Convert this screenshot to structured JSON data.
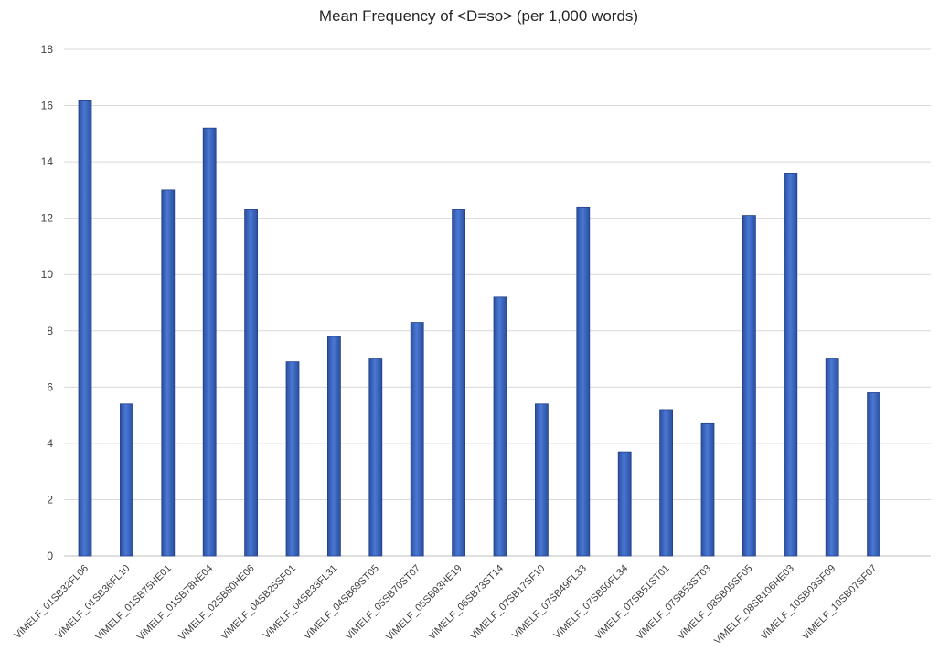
{
  "chart_data": {
    "type": "bar",
    "title": "Mean Frequency of <D=so> (per 1,000 words)",
    "xlabel": "",
    "ylabel": "",
    "ylim": [
      0,
      18
    ],
    "yticks": [
      0,
      2,
      4,
      6,
      8,
      10,
      12,
      14,
      16,
      18
    ],
    "grid": true,
    "legend": "none",
    "bar_color": "#3a63c2",
    "categories": [
      "ViMELF_01SB32FL06",
      "ViMELF_01SB36FL10",
      "ViMELF_01SB75HE01",
      "ViMELF_01SB78HE04",
      "ViMELF_02SB80HE06",
      "ViMELF_04SB25SF01",
      "ViMELF_04SB33FL31",
      "ViMELF_04SB69ST05",
      "ViMELF_05SB70ST07",
      "ViMELF_05SB93HE19",
      "ViMELF_06SB73ST14",
      "ViMELF_07SB17SF10",
      "ViMELF_07SB49FL33",
      "ViMELF_07SB50FL34",
      "ViMELF_07SB51ST01",
      "ViMELF_07SB53ST03",
      "ViMELF_08SB05SF05",
      "ViMELF_08SB106HE03",
      "ViMELF_10SB03SF09",
      "ViMELF_10SB07SF07"
    ],
    "values": [
      16.2,
      5.4,
      13.0,
      15.2,
      12.3,
      6.9,
      7.8,
      7.0,
      8.3,
      12.3,
      9.2,
      5.4,
      12.4,
      3.7,
      5.2,
      4.7,
      12.1,
      13.6,
      7.0,
      5.8
    ]
  }
}
